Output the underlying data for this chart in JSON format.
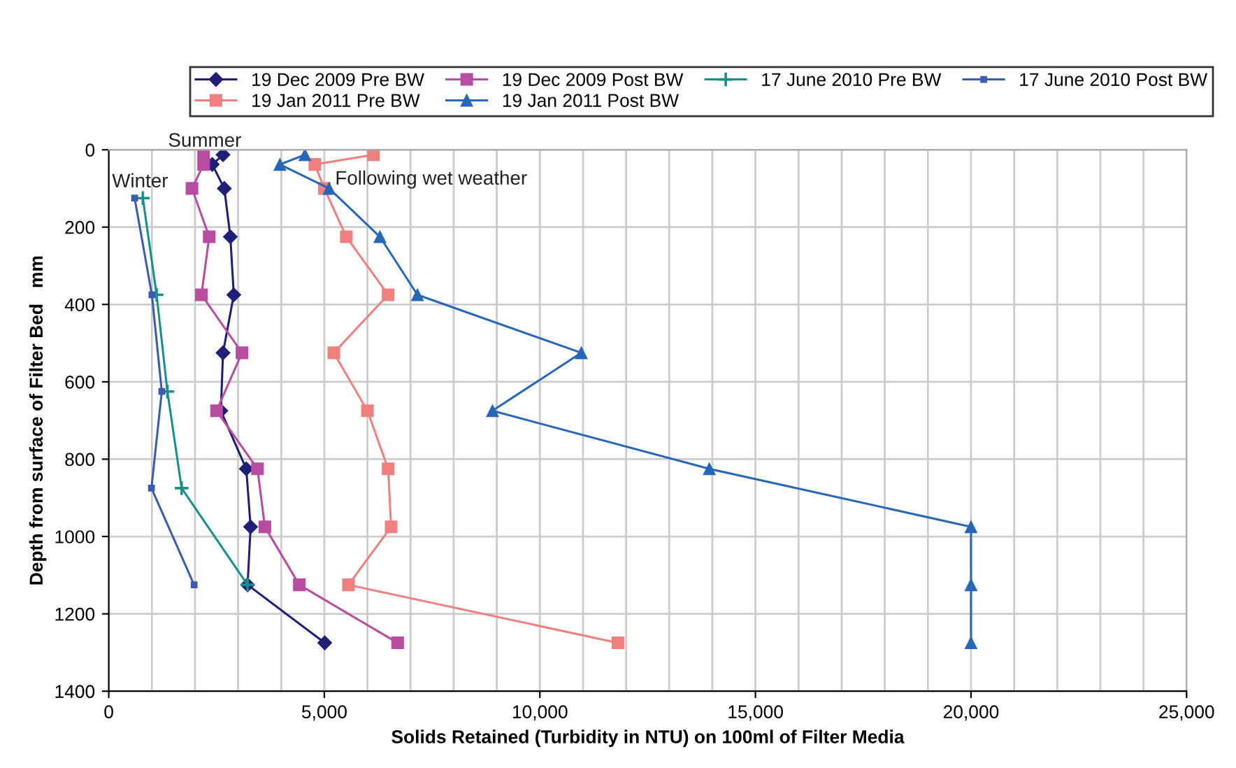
{
  "chart_data": {
    "type": "line",
    "xlabel": "Solids Retained (Turbidity in NTU) on 100ml of Filter Media",
    "ylabel": "Depth from surface of Filter Bed   mm",
    "xlim": [
      0,
      25000
    ],
    "ylim": [
      1400,
      0
    ],
    "xticks": [
      {
        "value": 0,
        "label": "0"
      },
      {
        "value": 1000,
        "label": null
      },
      {
        "value": 2000,
        "label": null
      },
      {
        "value": 3000,
        "label": null
      },
      {
        "value": 4000,
        "label": null
      },
      {
        "value": 5000,
        "label": "5,000"
      },
      {
        "value": 6000,
        "label": null
      },
      {
        "value": 7000,
        "label": null
      },
      {
        "value": 8000,
        "label": null
      },
      {
        "value": 9000,
        "label": null
      },
      {
        "value": 10000,
        "label": "10,000"
      },
      {
        "value": 11000,
        "label": null
      },
      {
        "value": 12000,
        "label": null
      },
      {
        "value": 13000,
        "label": null
      },
      {
        "value": 14000,
        "label": null
      },
      {
        "value": 15000,
        "label": "15,000"
      },
      {
        "value": 16000,
        "label": null
      },
      {
        "value": 17000,
        "label": null
      },
      {
        "value": 18000,
        "label": null
      },
      {
        "value": 19000,
        "label": null
      },
      {
        "value": 20000,
        "label": "20,000"
      },
      {
        "value": 21000,
        "label": null
      },
      {
        "value": 22000,
        "label": null
      },
      {
        "value": 23000,
        "label": null
      },
      {
        "value": 24000,
        "label": null
      },
      {
        "value": 25000,
        "label": "25,000"
      }
    ],
    "yticks": [
      0,
      200,
      400,
      600,
      800,
      1000,
      1200,
      1400
    ],
    "grid": true,
    "legend": "top",
    "line_style": "solid",
    "annotations": [
      "Summer",
      "Winter",
      "Following wet weather"
    ],
    "series": [
      {
        "name": "19 Dec 2009 Pre BW",
        "color": "#1f1f78",
        "marker": "diamond",
        "x": [
          2650,
          2400,
          2680,
          2820,
          2900,
          2650,
          2600,
          3190,
          3290,
          3220,
          5010
        ],
        "values": [
          13,
          38,
          100,
          225,
          375,
          525,
          675,
          825,
          975,
          1125,
          1275
        ]
      },
      {
        "name": "19 Dec 2009 Post BW",
        "color": "#b84ca0",
        "marker": "square",
        "x": [
          2200,
          2200,
          1930,
          2330,
          2150,
          3090,
          2500,
          3450,
          3620,
          4420,
          6700
        ],
        "values": [
          13,
          38,
          100,
          225,
          375,
          525,
          675,
          825,
          975,
          1125,
          1275
        ]
      },
      {
        "name": "17 June 2010 Pre BW",
        "color": "#17908a",
        "marker": "cross",
        "x": [
          790,
          1110,
          1360,
          1690,
          3220
        ],
        "values": [
          125,
          375,
          625,
          875,
          1125
        ]
      },
      {
        "name": "17 June 2010 Post BW",
        "color": "#3a5cb0",
        "marker": "square",
        "x": [
          600,
          1000,
          1230,
          990,
          1980
        ],
        "values": [
          125,
          375,
          625,
          875,
          1125
        ]
      },
      {
        "name": "19 Jan 2011 Pre BW",
        "color": "#f08080",
        "marker": "square",
        "x": [
          6140,
          4780,
          5000,
          5510,
          6480,
          5220,
          6000,
          6480,
          6550,
          5560,
          11810
        ],
        "values": [
          13,
          38,
          100,
          225,
          375,
          525,
          675,
          825,
          975,
          1125,
          1275
        ]
      },
      {
        "name": "19 Jan 2011 Post BW",
        "color": "#2867b8",
        "marker": "triangle",
        "x": [
          4550,
          3970,
          5110,
          6290,
          7160,
          10960,
          8900,
          13930,
          20000,
          20000,
          20000
        ],
        "values": [
          13,
          38,
          100,
          225,
          375,
          525,
          675,
          825,
          975,
          1125,
          1275
        ]
      }
    ]
  }
}
